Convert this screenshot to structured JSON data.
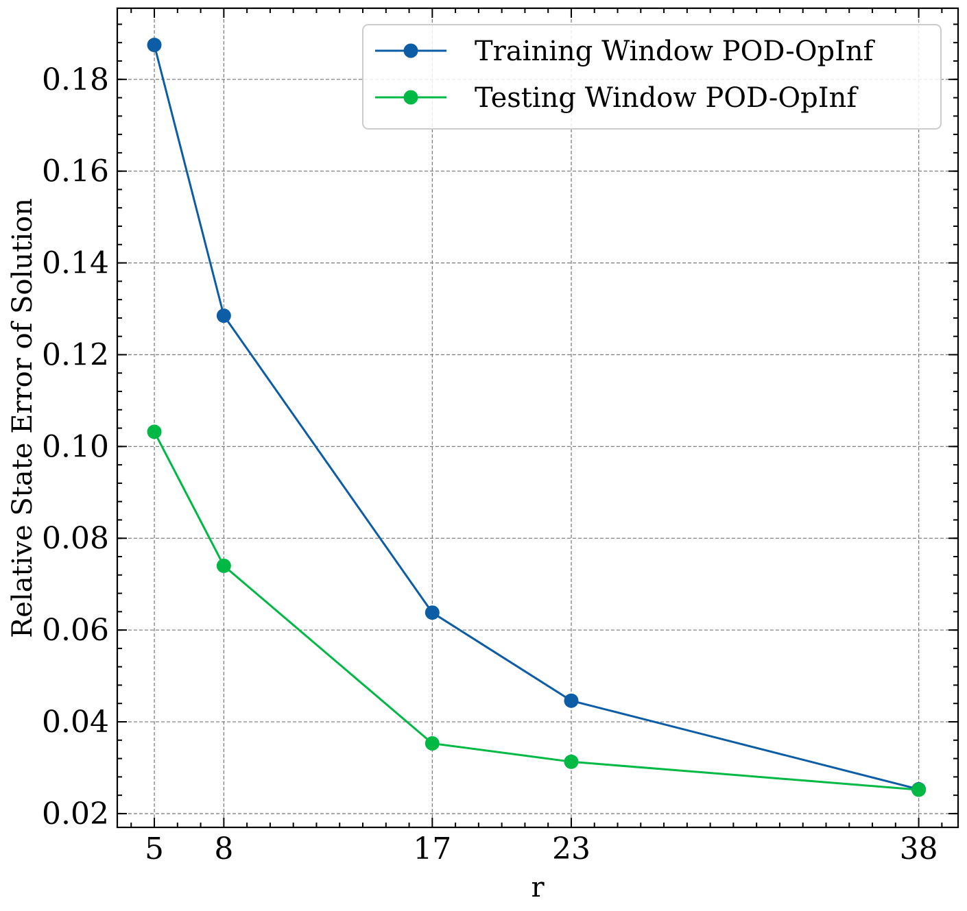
{
  "chart_data": {
    "type": "line",
    "title": "",
    "xlabel": "r",
    "ylabel": "Relative State Error of Solution",
    "x": [
      5,
      8,
      17,
      23,
      38
    ],
    "x_tick_labels": [
      "5",
      "8",
      "17",
      "23",
      "38"
    ],
    "xlim": [
      3.4,
      39.7
    ],
    "ylim": [
      0.017,
      0.1955
    ],
    "y_ticks": [
      0.02,
      0.04,
      0.06,
      0.08,
      0.1,
      0.12,
      0.14,
      0.16,
      0.18
    ],
    "y_tick_labels": [
      "0.02",
      "0.04",
      "0.06",
      "0.08",
      "0.10",
      "0.12",
      "0.14",
      "0.16",
      "0.18"
    ],
    "grid": true,
    "legend_position": "top-right",
    "series": [
      {
        "name": "Training Window POD-OpInf",
        "color": "#0C5DA5",
        "marker": "circle",
        "values": [
          0.1875,
          0.1285,
          0.0638,
          0.0446,
          0.0253
        ]
      },
      {
        "name": "Testing Window POD-OpInf",
        "color": "#00B945",
        "marker": "circle",
        "values": [
          0.1032,
          0.074,
          0.0353,
          0.0313,
          0.0252
        ]
      }
    ]
  }
}
